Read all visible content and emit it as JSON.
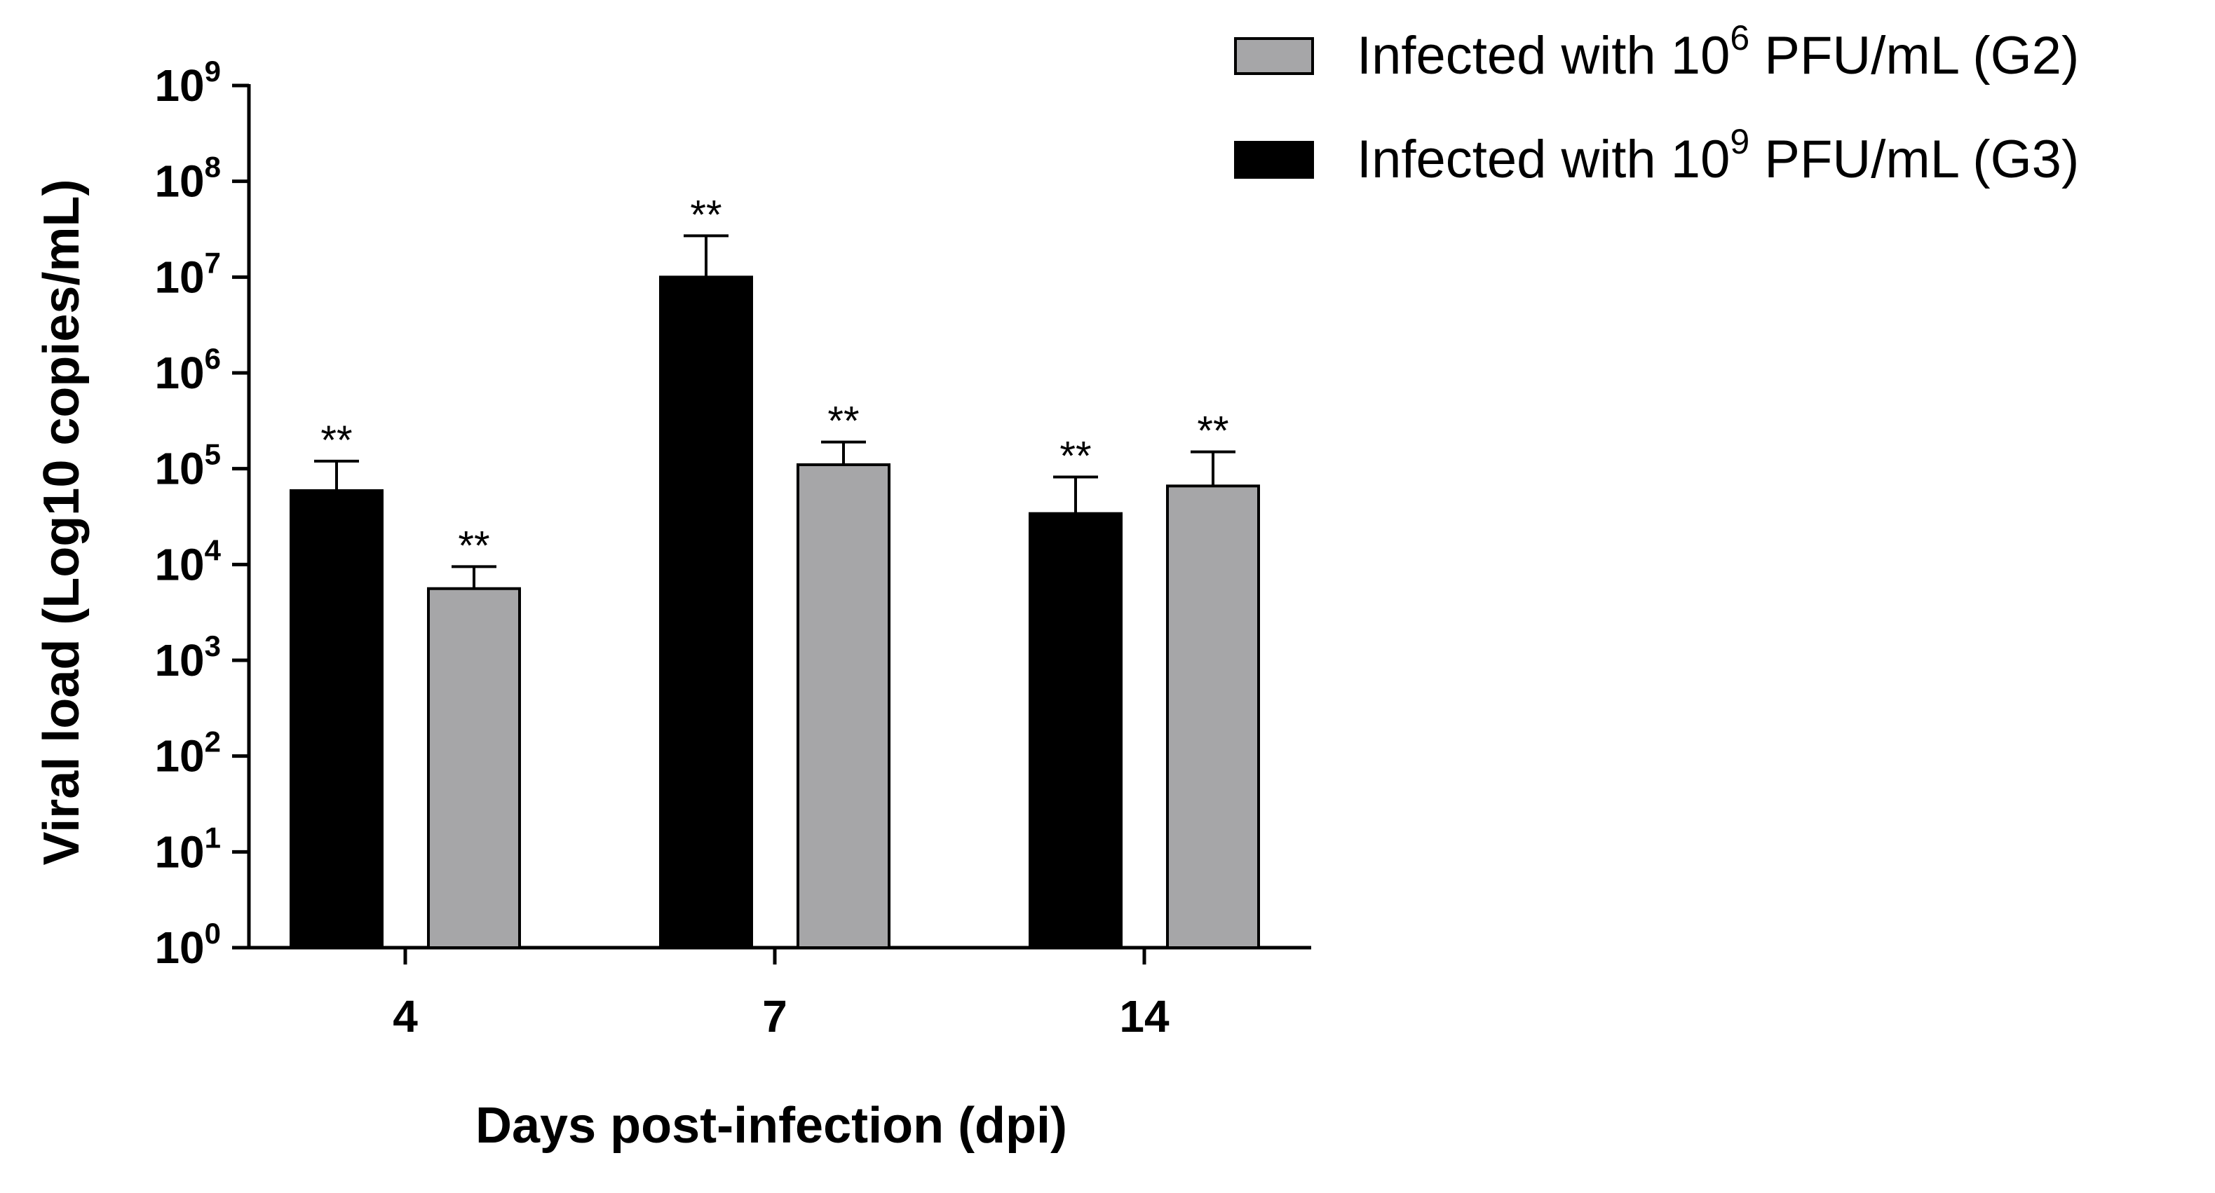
{
  "chart_data": {
    "type": "bar",
    "scale": "log10",
    "categories": [
      "4",
      "7",
      "14"
    ],
    "series": [
      {
        "name": "Infected with 10^9 PFU/mL (G3)",
        "legend_prefix": "Infected with 10",
        "legend_exp": "9",
        "legend_suffix": " PFU/mL (G3)",
        "color": "#000000",
        "values": [
          59000,
          10000000,
          34000
        ],
        "error_upper": [
          120000,
          27000000,
          82000
        ],
        "annotations": [
          "**",
          "**",
          "**"
        ]
      },
      {
        "name": "Infected with 10^6 PFU/mL (G2)",
        "legend_prefix": "Infected with 10",
        "legend_exp": "6",
        "legend_suffix": " PFU/mL (G2)",
        "color": "#a6a6a8",
        "values": [
          5600,
          110000,
          66000
        ],
        "error_upper": [
          9500,
          190000,
          150000
        ],
        "annotations": [
          "**",
          "**",
          "**"
        ]
      }
    ],
    "legend_order": [
      1,
      0
    ],
    "y_ticks": [
      {
        "base": "10",
        "exp": "0"
      },
      {
        "base": "10",
        "exp": "1"
      },
      {
        "base": "10",
        "exp": "2"
      },
      {
        "base": "10",
        "exp": "3"
      },
      {
        "base": "10",
        "exp": "4"
      },
      {
        "base": "10",
        "exp": "5"
      },
      {
        "base": "10",
        "exp": "6"
      },
      {
        "base": "10",
        "exp": "7"
      },
      {
        "base": "10",
        "exp": "8"
      },
      {
        "base": "10",
        "exp": "9"
      }
    ],
    "ylim_log10": [
      0,
      9
    ],
    "title": "",
    "xlabel": "Days post-infection (dpi)",
    "ylabel": "Viral load (Log10 copies/mL)",
    "legend_position": "top-right"
  }
}
